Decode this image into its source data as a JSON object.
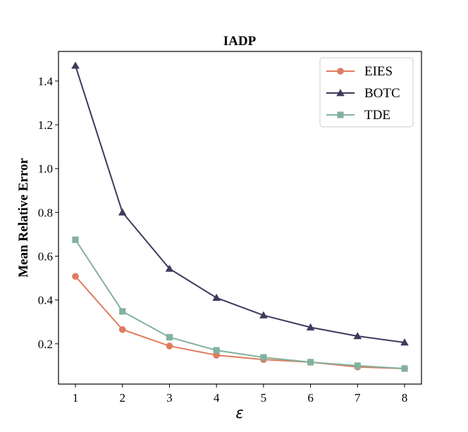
{
  "chart_data": {
    "type": "line",
    "title": "IADP",
    "xlabel": "ε",
    "ylabel": "Mean Relative Error",
    "x": [
      1,
      2,
      3,
      4,
      5,
      6,
      7,
      8
    ],
    "xticks": [
      "1",
      "2",
      "3",
      "4",
      "5",
      "6",
      "7",
      "8"
    ],
    "yticks": [
      "0.2",
      "0.4",
      "0.6",
      "0.8",
      "1.0",
      "1.2",
      "1.4"
    ],
    "xlim": [
      0.64,
      8.36
    ],
    "ylim": [
      0.016,
      1.535
    ],
    "grid": false,
    "legend_position": "top-right",
    "series": [
      {
        "name": "EIES",
        "marker": "circle",
        "color": "#E07B5E",
        "values": [
          0.508,
          0.265,
          0.19,
          0.148,
          0.128,
          0.116,
          0.094,
          0.087
        ]
      },
      {
        "name": "BOTC",
        "marker": "triangle",
        "color": "#3C3B5C",
        "values": [
          1.47,
          0.8,
          0.543,
          0.41,
          0.33,
          0.275,
          0.235,
          0.206
        ]
      },
      {
        "name": "TDE",
        "marker": "square",
        "color": "#82B29E",
        "values": [
          0.675,
          0.348,
          0.23,
          0.17,
          0.138,
          0.116,
          0.1,
          0.087
        ]
      }
    ]
  }
}
